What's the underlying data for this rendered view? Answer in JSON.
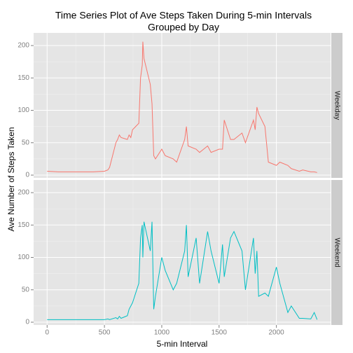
{
  "chart_data": {
    "type": "line",
    "title": [
      "Time Series Plot of Ave Steps Taken During 5-min Intervals",
      "Grouped by Day"
    ],
    "xlabel": "5-min Interval",
    "ylabel": "Ave Number of Steps Taken",
    "x": [
      0,
      100,
      200,
      300,
      400,
      500,
      530,
      545,
      600,
      615,
      630,
      645,
      700,
      715,
      730,
      745,
      800,
      815,
      830,
      835,
      845,
      900,
      915,
      930,
      945,
      1000,
      1030,
      1100,
      1130,
      1200,
      1215,
      1230,
      1300,
      1330,
      1400,
      1430,
      1500,
      1530,
      1545,
      1600,
      1630,
      1700,
      1730,
      1800,
      1815,
      1830,
      1845,
      1900,
      1930,
      2000,
      2030,
      2100,
      2130,
      2200,
      2230,
      2300,
      2330,
      2355
    ],
    "series": [
      {
        "name": "Weekday",
        "color": "#F8766D",
        "values": [
          6,
          5,
          5,
          5,
          5,
          6,
          8,
          12,
          50,
          55,
          62,
          58,
          55,
          62,
          58,
          70,
          80,
          150,
          170,
          206,
          180,
          140,
          110,
          30,
          25,
          40,
          30,
          25,
          20,
          55,
          75,
          45,
          40,
          35,
          45,
          35,
          40,
          40,
          85,
          55,
          55,
          65,
          50,
          85,
          70,
          105,
          95,
          75,
          20,
          15,
          20,
          15,
          10,
          6,
          8,
          5,
          5,
          4
        ]
      },
      {
        "name": "Weekend",
        "color": "#00BFC4",
        "values": [
          4,
          4,
          4,
          4,
          4,
          4,
          5,
          4,
          7,
          5,
          9,
          6,
          10,
          20,
          25,
          30,
          60,
          130,
          150,
          100,
          155,
          110,
          155,
          20,
          40,
          100,
          80,
          50,
          60,
          110,
          150,
          70,
          130,
          60,
          140,
          110,
          60,
          120,
          70,
          130,
          140,
          110,
          50,
          130,
          75,
          110,
          40,
          45,
          40,
          85,
          60,
          15,
          25,
          6,
          6,
          5,
          15,
          4
        ]
      }
    ],
    "xlim": [
      -117.75,
      2472.75
    ],
    "ylim": [
      -4.3,
      219.5
    ],
    "xticks": [
      0,
      500,
      1000,
      1500,
      2000
    ],
    "yticks": [
      0,
      50,
      100,
      150,
      200
    ],
    "grid": true
  }
}
